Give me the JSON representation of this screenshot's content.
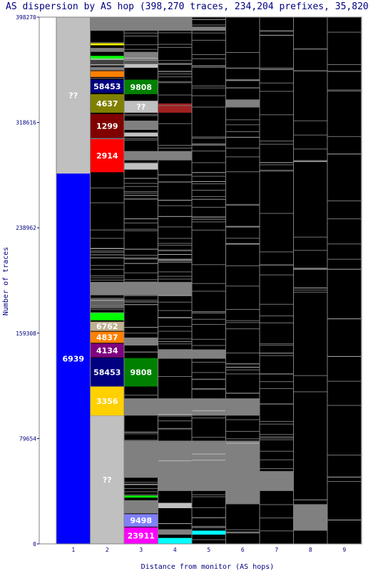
{
  "chart_data": {
    "type": "stacked-bar",
    "title": "AS dispersion by AS hop (398,270 traces, 234,204 prefixes, 35,820",
    "xlabel": "Distance from monitor (AS hops)",
    "ylabel": "Number of traces",
    "ylim": [
      0,
      398270
    ],
    "y_ticks": [
      "0",
      "79654",
      "159308",
      "238962",
      "318616",
      "398270"
    ],
    "y_tick_values": [
      0,
      79654,
      159308,
      238962,
      318616,
      398270
    ],
    "x_ticks": [
      "1",
      "2",
      "3",
      "4",
      "5",
      "6",
      "7",
      "8",
      "9"
    ],
    "background_color": "#000000",
    "labeled_segments": [
      {
        "hop": 1,
        "label": "??",
        "y0": 280000,
        "y1": 398270,
        "color": "#c0c0c0",
        "text_color": "#ffffff"
      },
      {
        "hop": 1,
        "label": "6939",
        "y0": 0,
        "y1": 280000,
        "color": "#0000ff",
        "text_color": "#ffffff"
      },
      {
        "hop": 2,
        "label": "58453",
        "y0": 341000,
        "y1": 351000,
        "color": "#000080",
        "text_color": "#ffffff"
      },
      {
        "hop": 2,
        "label": "4637",
        "y0": 326000,
        "y1": 340000,
        "color": "#808000",
        "text_color": "#ffffff"
      },
      {
        "hop": 2,
        "label": "1299",
        "y0": 307000,
        "y1": 325000,
        "color": "#800000",
        "text_color": "#ffffff"
      },
      {
        "hop": 2,
        "label": "2914",
        "y0": 281000,
        "y1": 306000,
        "color": "#ff0000",
        "text_color": "#ffffff"
      },
      {
        "hop": 2,
        "label": "6762",
        "y0": 161000,
        "y1": 168000,
        "color": "#c0b090",
        "text_color": "#ffffff"
      },
      {
        "hop": 2,
        "label": "4837",
        "y0": 152000,
        "y1": 160500,
        "color": "#ff8000",
        "text_color": "#ffffff"
      },
      {
        "hop": 2,
        "label": "4134",
        "y0": 141000,
        "y1": 151500,
        "color": "#800080",
        "text_color": "#ffffff"
      },
      {
        "hop": 2,
        "label": "58453",
        "y0": 119000,
        "y1": 140500,
        "color": "#000080",
        "text_color": "#ffffff"
      },
      {
        "hop": 2,
        "label": "3356",
        "y0": 97000,
        "y1": 119000,
        "color": "#ffd000",
        "text_color": "#ffffff"
      },
      {
        "hop": 2,
        "label": "??",
        "y0": 0,
        "y1": 97000,
        "color": "#c0c0c0",
        "text_color": "#ffffff"
      },
      {
        "hop": 3,
        "label": "9808",
        "y0": 340000,
        "y1": 351000,
        "color": "#008000",
        "text_color": "#ffffff"
      },
      {
        "hop": 3,
        "label": "??",
        "y0": 326000,
        "y1": 335000,
        "color": "#c0c0c0",
        "text_color": "#ffffff"
      },
      {
        "hop": 3,
        "label": "9808",
        "y0": 119000,
        "y1": 140500,
        "color": "#008000",
        "text_color": "#ffffff"
      },
      {
        "hop": 3,
        "label": "9498",
        "y0": 13000,
        "y1": 22500,
        "color": "#8080ff",
        "text_color": "#ffffff"
      },
      {
        "hop": 3,
        "label": "23911",
        "y0": 0,
        "y1": 12500,
        "color": "#ff00ff",
        "text_color": "#ffffff"
      }
    ],
    "unlabeled_segments": [
      {
        "hop": 2,
        "y0": 388000,
        "y1": 398000,
        "color": "#808080"
      },
      {
        "hop": 2,
        "y0": 377000,
        "y1": 378500,
        "color": "#ffff00"
      },
      {
        "hop": 2,
        "y0": 372000,
        "y1": 375000,
        "color": "#808080"
      },
      {
        "hop": 2,
        "y0": 366000,
        "y1": 369000,
        "color": "#00ff00"
      },
      {
        "hop": 2,
        "y0": 361000,
        "y1": 365000,
        "color": "#404040"
      },
      {
        "hop": 2,
        "y0": 358000,
        "y1": 360500,
        "color": "#808080"
      },
      {
        "hop": 2,
        "y0": 353000,
        "y1": 357500,
        "color": "#ff8000"
      },
      {
        "hop": 2,
        "y0": 268000,
        "y1": 278000,
        "color": "#000000"
      },
      {
        "hop": 2,
        "y0": 188000,
        "y1": 198000,
        "color": "#808080"
      },
      {
        "hop": 2,
        "y0": 178000,
        "y1": 186000,
        "color": "#606060"
      },
      {
        "hop": 2,
        "y0": 169000,
        "y1": 175000,
        "color": "#00ff00"
      },
      {
        "hop": 3,
        "y0": 388000,
        "y1": 398000,
        "color": "#808080"
      },
      {
        "hop": 3,
        "y0": 365000,
        "y1": 372000,
        "color": "#808080"
      },
      {
        "hop": 3,
        "y0": 360000,
        "y1": 363000,
        "color": "#c0c0c0"
      },
      {
        "hop": 3,
        "y0": 313000,
        "y1": 320000,
        "color": "#808080"
      },
      {
        "hop": 3,
        "y0": 308000,
        "y1": 311000,
        "color": "#c0c0c0"
      },
      {
        "hop": 3,
        "y0": 290000,
        "y1": 297000,
        "color": "#808080"
      },
      {
        "hop": 3,
        "y0": 283000,
        "y1": 288000,
        "color": "#c0c0c0"
      },
      {
        "hop": 3,
        "y0": 188000,
        "y1": 198000,
        "color": "#808080"
      },
      {
        "hop": 3,
        "y0": 150000,
        "y1": 156000,
        "color": "#808080"
      },
      {
        "hop": 3,
        "y0": 97000,
        "y1": 110000,
        "color": "#808080"
      },
      {
        "hop": 3,
        "y0": 50000,
        "y1": 78000,
        "color": "#808080"
      },
      {
        "hop": 3,
        "y0": 35000,
        "y1": 36500,
        "color": "#00ff00"
      },
      {
        "hop": 3,
        "y0": 23000,
        "y1": 33000,
        "color": "#808080"
      },
      {
        "hop": 4,
        "y0": 388000,
        "y1": 398000,
        "color": "#808080"
      },
      {
        "hop": 4,
        "y0": 326000,
        "y1": 333000,
        "color": "#a02020"
      },
      {
        "hop": 4,
        "y0": 290000,
        "y1": 297000,
        "color": "#808080"
      },
      {
        "hop": 4,
        "y0": 188000,
        "y1": 198000,
        "color": "#808080"
      },
      {
        "hop": 4,
        "y0": 140000,
        "y1": 147000,
        "color": "#808080"
      },
      {
        "hop": 4,
        "y0": 97000,
        "y1": 110000,
        "color": "#808080"
      },
      {
        "hop": 4,
        "y0": 40000,
        "y1": 78000,
        "color": "#808080"
      },
      {
        "hop": 4,
        "y0": 27000,
        "y1": 31000,
        "color": "#c0c0c0"
      },
      {
        "hop": 4,
        "y0": 0,
        "y1": 4500,
        "color": "#00ffff"
      },
      {
        "hop": 4,
        "y0": 7000,
        "y1": 11000,
        "color": "#808080"
      },
      {
        "hop": 5,
        "y0": 388000,
        "y1": 391000,
        "color": "#808080"
      },
      {
        "hop": 5,
        "y0": 140000,
        "y1": 147000,
        "color": "#808080"
      },
      {
        "hop": 5,
        "y0": 97000,
        "y1": 110000,
        "color": "#808080"
      },
      {
        "hop": 5,
        "y0": 40000,
        "y1": 78000,
        "color": "#808080"
      },
      {
        "hop": 5,
        "y0": 7000,
        "y1": 10000,
        "color": "#00ffff"
      },
      {
        "hop": 6,
        "y0": 330000,
        "y1": 336000,
        "color": "#808080"
      },
      {
        "hop": 6,
        "y0": 97000,
        "y1": 110000,
        "color": "#808080"
      },
      {
        "hop": 6,
        "y0": 30000,
        "y1": 78000,
        "color": "#808080"
      },
      {
        "hop": 7,
        "y0": 40000,
        "y1": 55000,
        "color": "#808080"
      },
      {
        "hop": 8,
        "y0": 10000,
        "y1": 30000,
        "color": "#808080"
      }
    ]
  }
}
